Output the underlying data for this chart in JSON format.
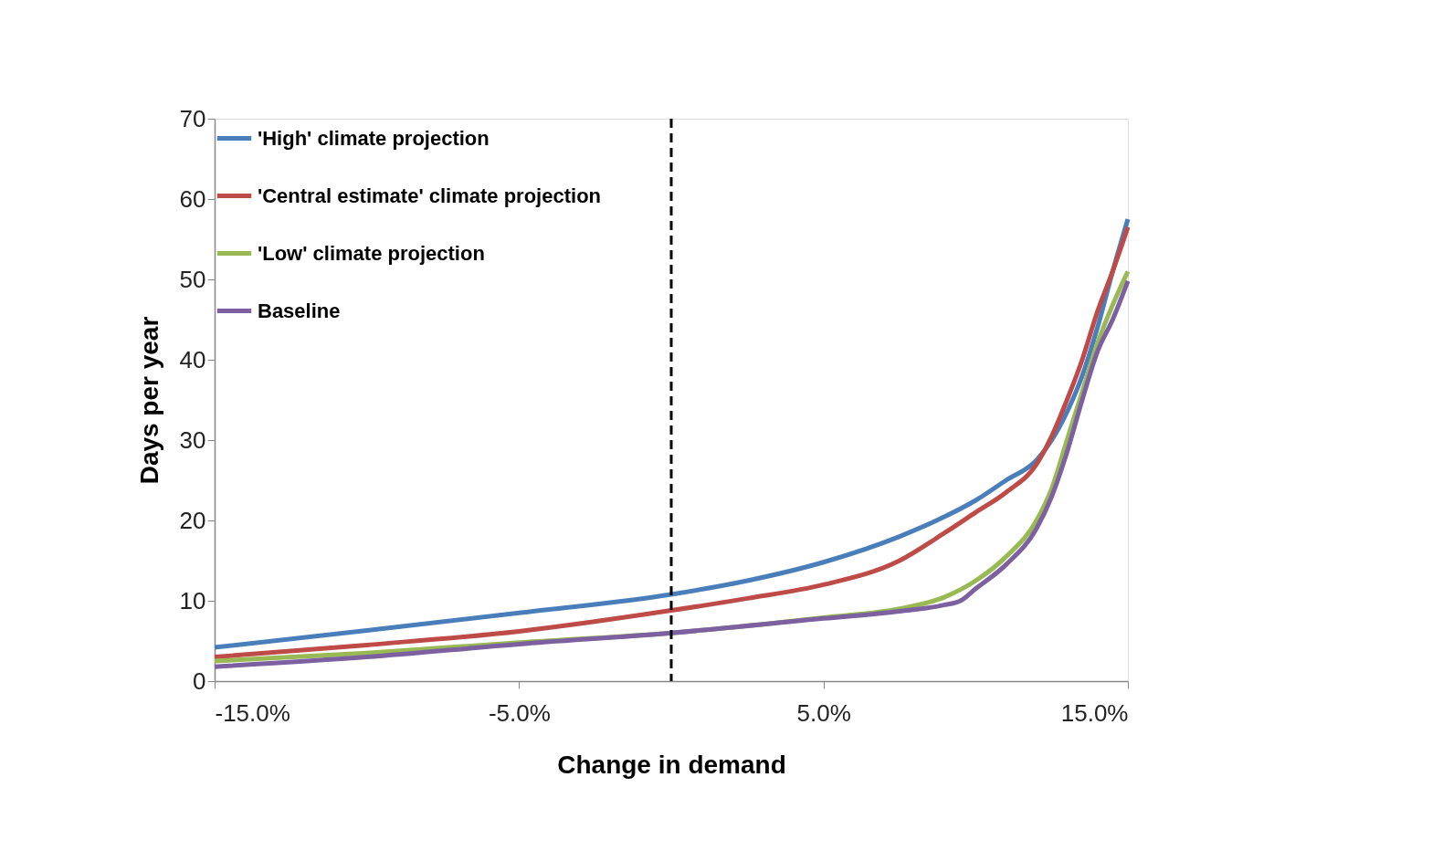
{
  "chart_data": {
    "type": "line",
    "xlabel": "Change in demand",
    "ylabel": "Days per year",
    "xlim": [
      -15,
      15
    ],
    "ylim": [
      0,
      70
    ],
    "xticks": [
      {
        "value": -15,
        "label": "-15.0%"
      },
      {
        "value": -5,
        "label": "-5.0%"
      },
      {
        "value": 5,
        "label": "5.0%"
      },
      {
        "value": 15,
        "label": "15.0%"
      }
    ],
    "yticks": [
      0,
      10,
      20,
      30,
      40,
      50,
      60,
      70
    ],
    "grid": false,
    "legend": "top left",
    "marker": "none",
    "line_style": "solid",
    "ref_lines": [
      {
        "axis": "x",
        "value": 0,
        "label": null,
        "color": "#000000",
        "line_style": "dashed"
      }
    ],
    "series": [
      {
        "name": "'High' climate projection",
        "color": "#4a7ebb",
        "x": [
          -15,
          -10,
          -5,
          0,
          2.5,
          5,
          7.5,
          9,
          10,
          11,
          12,
          12.5,
          13,
          13.5,
          14,
          14.5,
          15
        ],
        "values": [
          4.2,
          6.3,
          8.5,
          10.8,
          12.5,
          14.8,
          18,
          20.5,
          22.5,
          25,
          27.5,
          30,
          33.5,
          38,
          44,
          51,
          57.5
        ]
      },
      {
        "name": "'Central estimate' climate projection",
        "color": "#be4b48",
        "x": [
          -15,
          -10,
          -5,
          0,
          2.5,
          5,
          7.5,
          9,
          10,
          11,
          12,
          12.5,
          13,
          13.5,
          14,
          14.5,
          15
        ],
        "values": [
          3,
          4.5,
          6.2,
          8.8,
          10.3,
          12,
          15,
          18.5,
          21,
          23.5,
          27,
          30.5,
          35,
          40,
          46,
          51,
          56.5
        ]
      },
      {
        "name": "'Low' climate projection",
        "color": "#98b954",
        "x": [
          -15,
          -10,
          -5,
          0,
          5,
          7.5,
          9,
          10,
          11,
          12,
          12.5,
          13,
          13.5,
          14,
          15
        ],
        "values": [
          2.5,
          3.5,
          4.8,
          6,
          7.9,
          9,
          10.5,
          12.5,
          15.5,
          20,
          24,
          30,
          36,
          42,
          51
        ]
      },
      {
        "name": "Baseline",
        "color": "#7d60a0",
        "x": [
          -15,
          -10,
          -5,
          0,
          5,
          7.5,
          9,
          9.5,
          10,
          11,
          12,
          12.5,
          13,
          13.5,
          14,
          14.5,
          15
        ],
        "values": [
          1.8,
          3,
          4.6,
          6,
          7.8,
          8.7,
          9.5,
          10,
          11.5,
          14.5,
          19,
          23,
          28.5,
          35,
          41,
          45,
          49.8
        ]
      }
    ]
  }
}
